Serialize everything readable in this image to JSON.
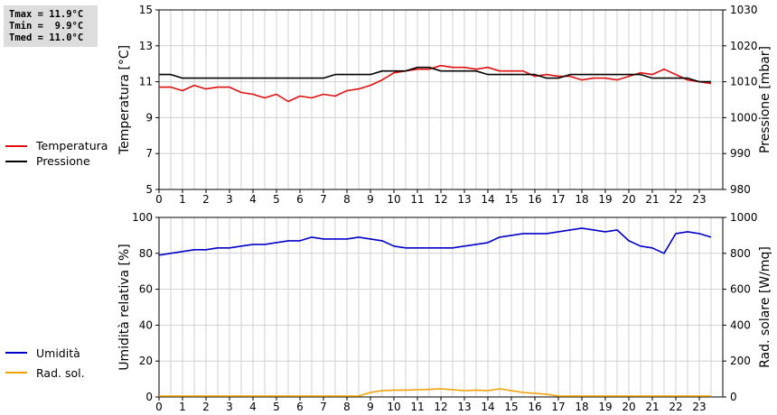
{
  "stats": {
    "tmax": "Tmax = 11.9°C",
    "tmin": "Tmin =  9.9°C",
    "tmed": "Tmed = 11.0°C"
  },
  "colors": {
    "temperature": "#e01010",
    "pressure": "#000000",
    "humidity": "#0000c8",
    "solar": "#f0a000",
    "grid": "#d0d0d0"
  },
  "chart_data": [
    {
      "type": "line",
      "ylabel": "Temperatura [°C]",
      "y2label": "Pressione [mbar]",
      "ylim": [
        5,
        15
      ],
      "y2lim": [
        980,
        1030
      ],
      "yticks": [
        "5",
        "7",
        "9",
        "11",
        "13",
        "15"
      ],
      "y2ticks": [
        "980",
        "990",
        "1000",
        "1010",
        "1020",
        "1030"
      ],
      "xlim": [
        0,
        24
      ],
      "xticks": [
        "0",
        "1",
        "2",
        "3",
        "4",
        "5",
        "6",
        "7",
        "8",
        "9",
        "10",
        "11",
        "12",
        "13",
        "14",
        "15",
        "16",
        "17",
        "18",
        "19",
        "20",
        "21",
        "22",
        "23"
      ],
      "legend": [
        "Temperatura",
        "Pressione"
      ],
      "series": [
        {
          "name": "Temperatura",
          "axis": "left",
          "x": [
            0,
            0.5,
            1,
            1.5,
            2,
            2.5,
            3,
            3.5,
            4,
            4.5,
            5,
            5.5,
            6,
            6.5,
            7,
            7.5,
            8,
            8.5,
            9,
            9.5,
            10,
            10.5,
            11,
            11.5,
            12,
            12.5,
            13,
            13.5,
            14,
            14.5,
            15,
            15.5,
            16,
            16.5,
            17,
            17.5,
            18,
            18.5,
            19,
            19.5,
            20,
            20.5,
            21,
            21.5,
            22,
            22.5,
            23,
            23.5
          ],
          "y": [
            10.7,
            10.7,
            10.5,
            10.8,
            10.6,
            10.7,
            10.7,
            10.4,
            10.3,
            10.1,
            10.3,
            9.9,
            10.2,
            10.1,
            10.3,
            10.2,
            10.5,
            10.6,
            10.8,
            11.1,
            11.5,
            11.6,
            11.7,
            11.7,
            11.9,
            11.8,
            11.8,
            11.7,
            11.8,
            11.6,
            11.6,
            11.6,
            11.3,
            11.4,
            11.3,
            11.3,
            11.1,
            11.2,
            11.2,
            11.1,
            11.3,
            11.5,
            11.4,
            11.7,
            11.4,
            11.1,
            11.0,
            10.9
          ]
        },
        {
          "name": "Pressione",
          "axis": "right",
          "x": [
            0,
            0.5,
            1,
            1.5,
            2,
            2.5,
            3,
            3.5,
            4,
            4.5,
            5,
            5.5,
            6,
            6.5,
            7,
            7.5,
            8,
            8.5,
            9,
            9.5,
            10,
            10.5,
            11,
            11.5,
            12,
            12.5,
            13,
            13.5,
            14,
            14.5,
            15,
            15.5,
            16,
            16.5,
            17,
            17.5,
            18,
            18.5,
            19,
            19.5,
            20,
            20.5,
            21,
            21.5,
            22,
            22.5,
            23,
            23.5
          ],
          "y": [
            1012,
            1012,
            1011,
            1011,
            1011,
            1011,
            1011,
            1011,
            1011,
            1011,
            1011,
            1011,
            1011,
            1011,
            1011,
            1012,
            1012,
            1012,
            1012,
            1013,
            1013,
            1013,
            1014,
            1014,
            1013,
            1013,
            1013,
            1013,
            1012,
            1012,
            1012,
            1012,
            1012,
            1011,
            1011,
            1012,
            1012,
            1012,
            1012,
            1012,
            1012,
            1012,
            1011,
            1011,
            1011,
            1011,
            1010,
            1010
          ]
        }
      ]
    },
    {
      "type": "line",
      "ylabel": "Umidità relativa [%]",
      "y2label": "Rad. solare [W/mq]",
      "ylim": [
        0,
        100
      ],
      "y2lim": [
        0,
        1000
      ],
      "yticks": [
        "0",
        "20",
        "40",
        "60",
        "80",
        "100"
      ],
      "y2ticks": [
        "0",
        "200",
        "400",
        "600",
        "800",
        "1000"
      ],
      "xlim": [
        0,
        24
      ],
      "xticks": [
        "0",
        "1",
        "2",
        "3",
        "4",
        "5",
        "6",
        "7",
        "8",
        "9",
        "10",
        "11",
        "12",
        "13",
        "14",
        "15",
        "16",
        "17",
        "18",
        "19",
        "20",
        "21",
        "22",
        "23"
      ],
      "legend": [
        "Umidità",
        "Rad. sol."
      ],
      "series": [
        {
          "name": "Umidità",
          "axis": "left",
          "x": [
            0,
            0.5,
            1,
            1.5,
            2,
            2.5,
            3,
            3.5,
            4,
            4.5,
            5,
            5.5,
            6,
            6.5,
            7,
            7.5,
            8,
            8.5,
            9,
            9.5,
            10,
            10.5,
            11,
            11.5,
            12,
            12.5,
            13,
            13.5,
            14,
            14.5,
            15,
            15.5,
            16,
            16.5,
            17,
            17.5,
            18,
            18.5,
            19,
            19.5,
            20,
            20.5,
            21,
            21.5,
            22,
            22.5,
            23,
            23.5
          ],
          "y": [
            79,
            80,
            81,
            82,
            82,
            83,
            83,
            84,
            85,
            85,
            86,
            87,
            87,
            89,
            88,
            88,
            88,
            89,
            88,
            87,
            84,
            83,
            83,
            83,
            83,
            83,
            84,
            85,
            86,
            89,
            90,
            91,
            91,
            91,
            92,
            93,
            94,
            93,
            92,
            93,
            87,
            84,
            83,
            80,
            91,
            92,
            91,
            89
          ]
        },
        {
          "name": "Rad. sol.",
          "axis": "right",
          "x": [
            0,
            1,
            2,
            3,
            4,
            5,
            6,
            7,
            8,
            8.5,
            9,
            9.5,
            10,
            10.5,
            11,
            11.5,
            12,
            12.5,
            13,
            13.5,
            14,
            14.5,
            15,
            15.5,
            16,
            16.5,
            17,
            18,
            19,
            20,
            21,
            22,
            23,
            23.5
          ],
          "y": [
            5,
            5,
            5,
            5,
            5,
            5,
            5,
            5,
            5,
            5,
            25,
            35,
            38,
            38,
            40,
            42,
            45,
            40,
            35,
            38,
            35,
            45,
            35,
            25,
            20,
            15,
            5,
            5,
            5,
            5,
            5,
            5,
            5,
            5
          ]
        }
      ]
    }
  ]
}
